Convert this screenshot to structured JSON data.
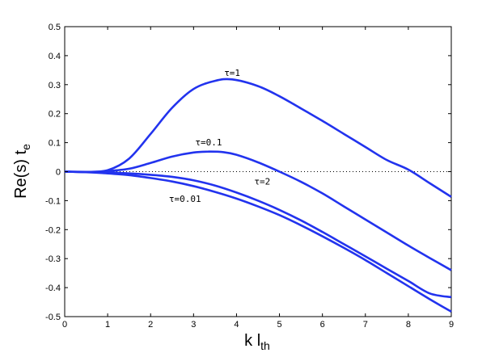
{
  "chart_data": {
    "type": "line",
    "title": "",
    "xlabel": {
      "main": "k l",
      "sub": "th"
    },
    "ylabel": {
      "main": "Re(s) t",
      "sub": "e"
    },
    "xlim": [
      0,
      9
    ],
    "ylim": [
      -0.5,
      0.5
    ],
    "x_ticks": [
      "0",
      "1",
      "2",
      "3",
      "4",
      "5",
      "6",
      "7",
      "8",
      "9"
    ],
    "y_ticks": [
      "-0.5",
      "-0.4",
      "-0.3",
      "-0.2",
      "-0.1",
      "0",
      "0.1",
      "0.2",
      "0.3",
      "0.4",
      "0.5"
    ],
    "grid": false,
    "legend": "none",
    "zero_line": "dotted",
    "line_color": "#2233ee",
    "series": [
      {
        "name": "τ=1",
        "x": [
          0,
          0.5,
          1,
          1.5,
          2,
          2.5,
          3,
          3.5,
          3.9,
          4.5,
          5,
          5.5,
          6,
          6.5,
          7,
          7.5,
          8,
          8.5,
          9
        ],
        "y": [
          0,
          -0.001,
          0.005,
          0.045,
          0.13,
          0.22,
          0.285,
          0.313,
          0.318,
          0.295,
          0.26,
          0.218,
          0.175,
          0.13,
          0.085,
          0.04,
          0.007,
          -0.04,
          -0.087
        ]
      },
      {
        "name": "τ=0.1",
        "x": [
          0,
          0.5,
          1,
          1.5,
          2,
          2.5,
          3,
          3.35,
          3.7,
          4,
          4.5,
          5,
          5.5,
          6,
          6.5,
          7,
          7.5,
          8,
          8.5,
          9
        ],
        "y": [
          0,
          -0.001,
          0.002,
          0.01,
          0.03,
          0.052,
          0.066,
          0.069,
          0.067,
          0.058,
          0.032,
          0,
          -0.035,
          -0.075,
          -0.12,
          -0.165,
          -0.21,
          -0.255,
          -0.298,
          -0.34
        ]
      },
      {
        "name": "τ=2",
        "x": [
          0,
          0.5,
          1,
          1.5,
          2,
          2.5,
          3,
          3.5,
          4,
          4.5,
          5,
          5.5,
          6,
          6.5,
          7,
          7.5,
          8,
          8.5,
          9
        ],
        "y": [
          0,
          -0.001,
          -0.003,
          -0.006,
          -0.011,
          -0.018,
          -0.03,
          -0.048,
          -0.072,
          -0.1,
          -0.132,
          -0.168,
          -0.208,
          -0.25,
          -0.292,
          -0.335,
          -0.377,
          -0.42,
          -0.433
        ]
      },
      {
        "name": "τ=0.01",
        "x": [
          0,
          0.5,
          1,
          1.5,
          2,
          2.5,
          3,
          3.5,
          4,
          4.5,
          5,
          5.5,
          6,
          6.5,
          7,
          7.5,
          8,
          8.5,
          9
        ],
        "y": [
          0,
          -0.002,
          -0.006,
          -0.012,
          -0.022,
          -0.034,
          -0.05,
          -0.07,
          -0.093,
          -0.12,
          -0.15,
          -0.185,
          -0.223,
          -0.263,
          -0.305,
          -0.35,
          -0.395,
          -0.44,
          -0.483
        ]
      }
    ],
    "annotations": [
      {
        "text": "τ=1",
        "x": 3.9,
        "y": 0.33
      },
      {
        "text": "τ=0.1",
        "x": 3.35,
        "y": 0.09
      },
      {
        "text": "τ=2",
        "x": 4.6,
        "y": -0.045
      },
      {
        "text": "τ=0.01",
        "x": 2.8,
        "y": -0.105
      }
    ]
  }
}
